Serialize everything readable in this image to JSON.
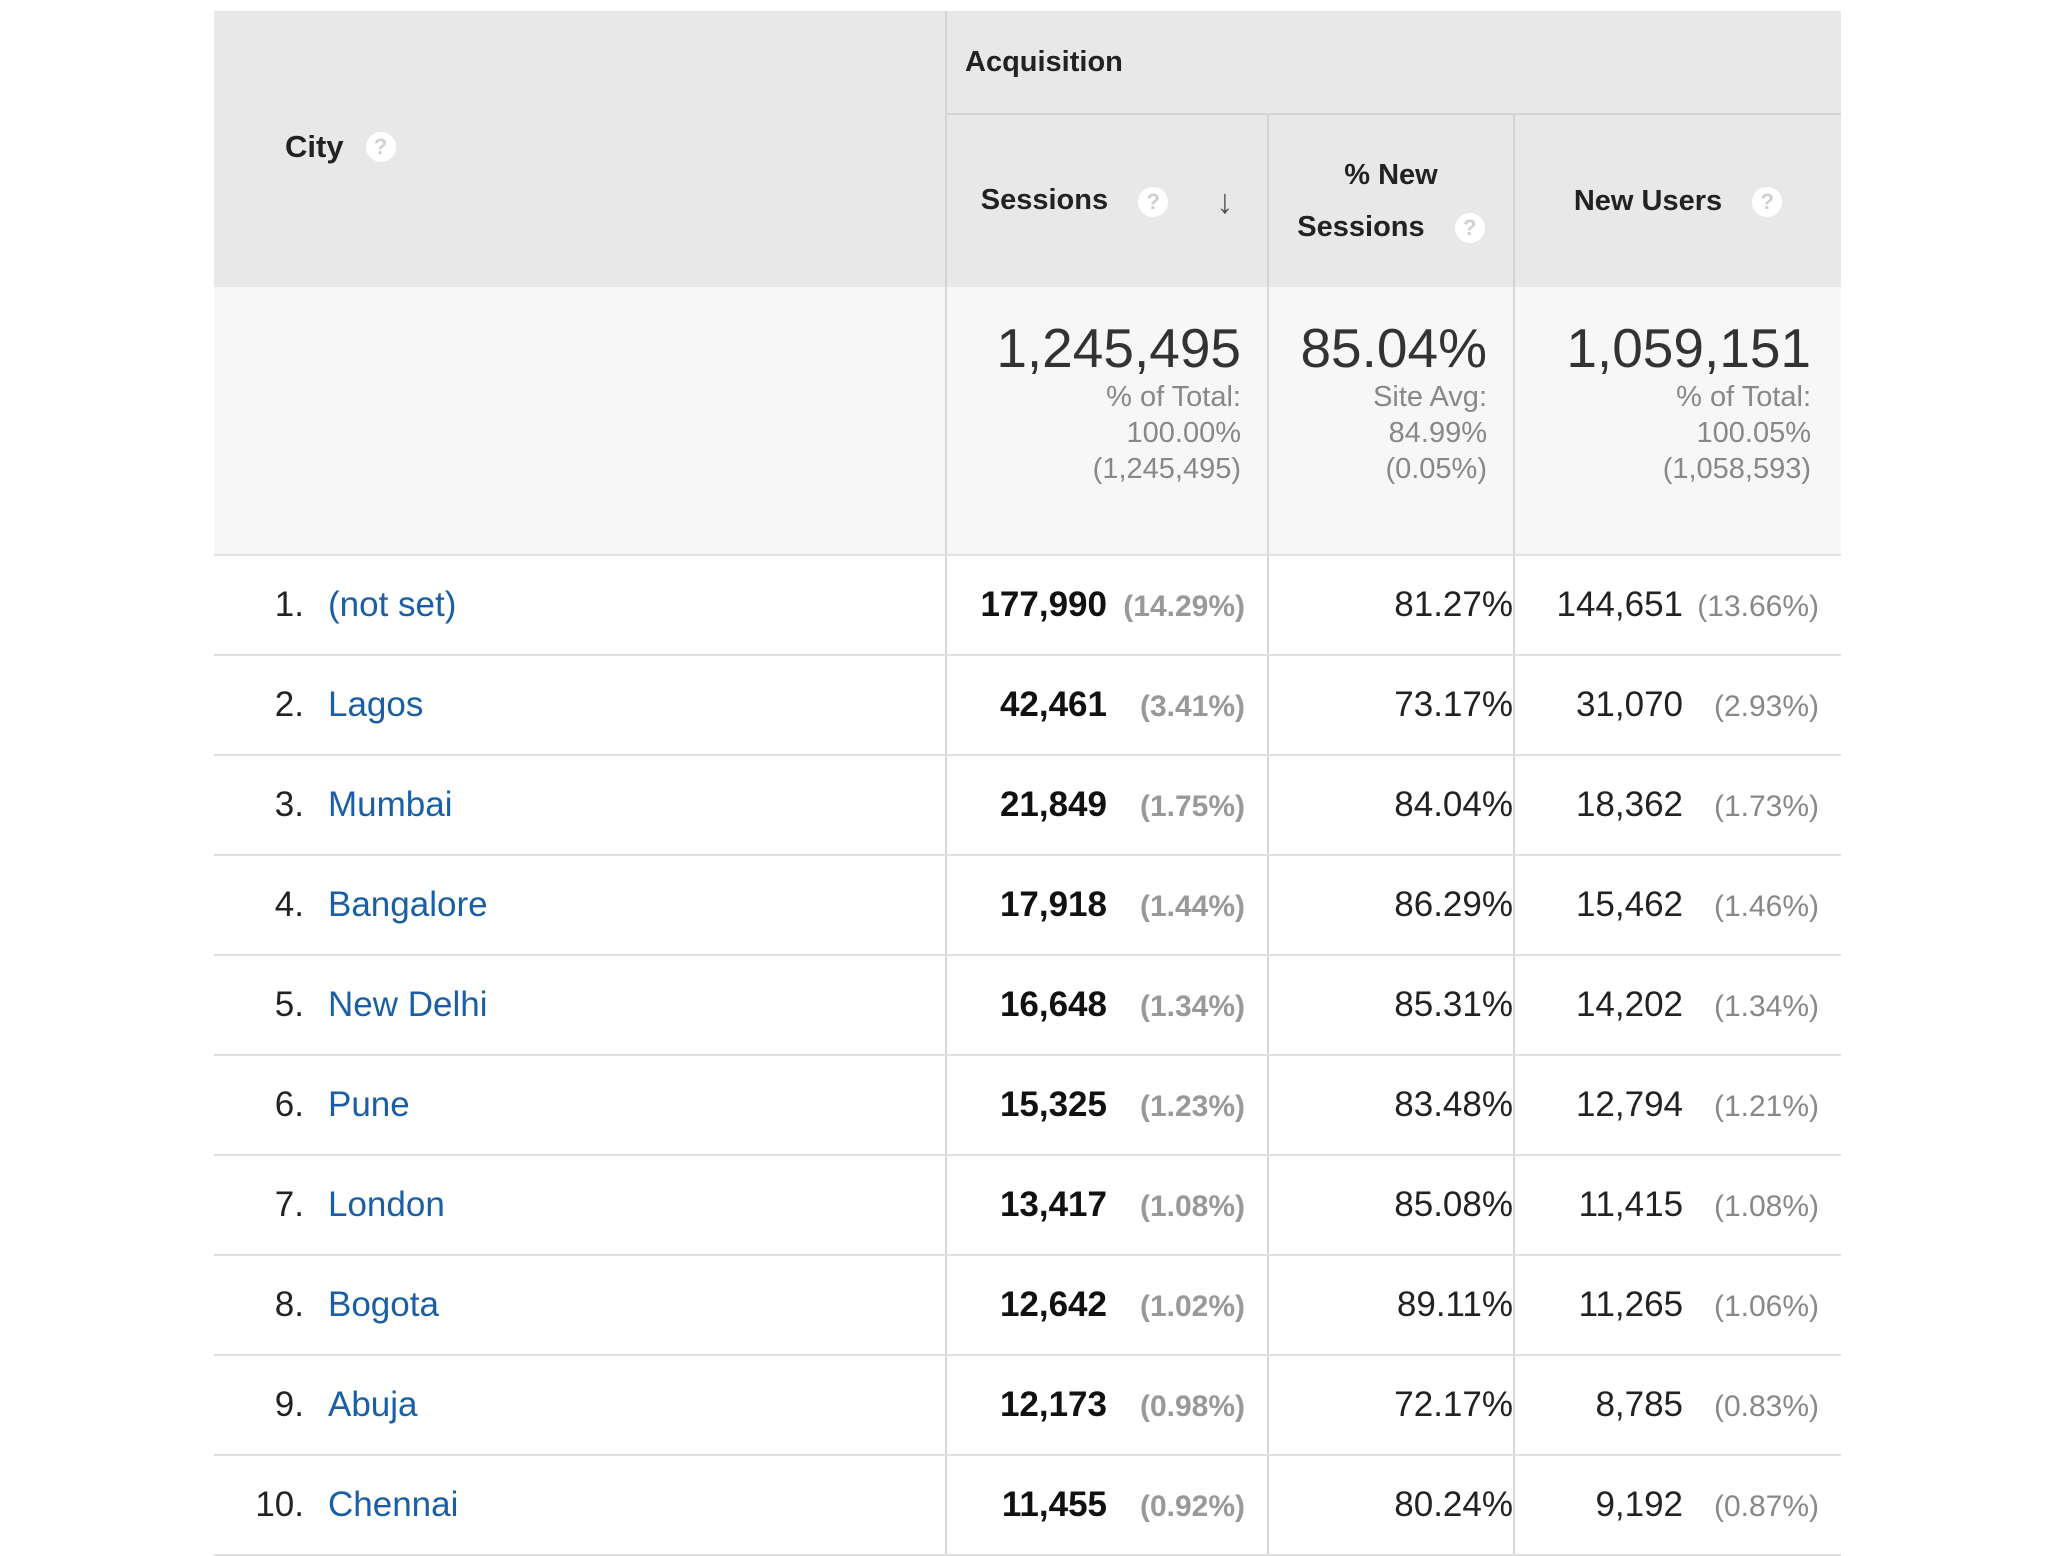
{
  "header": {
    "city_label": "City",
    "acquisition_label": "Acquisition",
    "sessions_label": "Sessions",
    "new_sessions_line1": "% New",
    "new_sessions_line2": "Sessions",
    "new_users_label": "New Users",
    "help_glyph": "?",
    "sort_glyph": "↓"
  },
  "totals": {
    "sessions": {
      "value": "1,245,495",
      "line1": "% of Total:",
      "line2": "100.00%",
      "line3": "(1,245,495)"
    },
    "new_sessions": {
      "value": "85.04%",
      "line1": "Site Avg:",
      "line2": "84.99%",
      "line3": "(0.05%)"
    },
    "new_users": {
      "value": "1,059,151",
      "line1": "% of Total:",
      "line2": "100.05%",
      "line3": "(1,058,593)"
    }
  },
  "rows": [
    {
      "index": "1.",
      "city": "(not set)",
      "sessions": "177,990",
      "sessions_pct": "(14.29%)",
      "new_sessions": "81.27%",
      "new_users": "144,651",
      "new_users_pct": "(13.66%)"
    },
    {
      "index": "2.",
      "city": "Lagos",
      "sessions": "42,461",
      "sessions_pct": "(3.41%)",
      "new_sessions": "73.17%",
      "new_users": "31,070",
      "new_users_pct": "(2.93%)"
    },
    {
      "index": "3.",
      "city": "Mumbai",
      "sessions": "21,849",
      "sessions_pct": "(1.75%)",
      "new_sessions": "84.04%",
      "new_users": "18,362",
      "new_users_pct": "(1.73%)"
    },
    {
      "index": "4.",
      "city": "Bangalore",
      "sessions": "17,918",
      "sessions_pct": "(1.44%)",
      "new_sessions": "86.29%",
      "new_users": "15,462",
      "new_users_pct": "(1.46%)"
    },
    {
      "index": "5.",
      "city": "New Delhi",
      "sessions": "16,648",
      "sessions_pct": "(1.34%)",
      "new_sessions": "85.31%",
      "new_users": "14,202",
      "new_users_pct": "(1.34%)"
    },
    {
      "index": "6.",
      "city": "Pune",
      "sessions": "15,325",
      "sessions_pct": "(1.23%)",
      "new_sessions": "83.48%",
      "new_users": "12,794",
      "new_users_pct": "(1.21%)"
    },
    {
      "index": "7.",
      "city": "London",
      "sessions": "13,417",
      "sessions_pct": "(1.08%)",
      "new_sessions": "85.08%",
      "new_users": "11,415",
      "new_users_pct": "(1.08%)"
    },
    {
      "index": "8.",
      "city": "Bogota",
      "sessions": "12,642",
      "sessions_pct": "(1.02%)",
      "new_sessions": "89.11%",
      "new_users": "11,265",
      "new_users_pct": "(1.06%)"
    },
    {
      "index": "9.",
      "city": "Abuja",
      "sessions": "12,173",
      "sessions_pct": "(0.98%)",
      "new_sessions": "72.17%",
      "new_users": "8,785",
      "new_users_pct": "(0.83%)"
    },
    {
      "index": "10.",
      "city": "Chennai",
      "sessions": "11,455",
      "sessions_pct": "(0.92%)",
      "new_sessions": "80.24%",
      "new_users": "9,192",
      "new_users_pct": "(0.87%)"
    }
  ]
}
